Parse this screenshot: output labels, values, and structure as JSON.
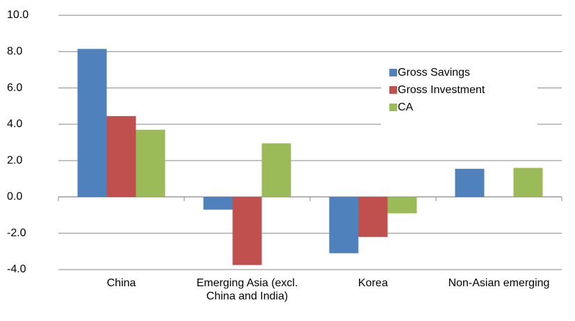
{
  "chart_data": {
    "type": "bar",
    "categories": [
      "China",
      "Emerging Asia (excl. China and India)",
      "Korea",
      "Non-Asian emerging"
    ],
    "series": [
      {
        "name": "Gross Savings",
        "color": "#4f81bd",
        "values": [
          8.15,
          -0.7,
          -3.1,
          1.55
        ]
      },
      {
        "name": "Gross Investment",
        "color": "#c0504d",
        "values": [
          4.45,
          -3.75,
          -2.2,
          null
        ]
      },
      {
        "name": "CA",
        "color": "#9bbb59",
        "values": [
          3.7,
          2.95,
          -0.9,
          1.6
        ]
      }
    ],
    "ylim": [
      -4,
      10
    ],
    "yticks": [
      {
        "value": -4,
        "label": "-4.0"
      },
      {
        "value": -2,
        "label": "-2.0"
      },
      {
        "value": 0,
        "label": "0.0"
      },
      {
        "value": 2,
        "label": "2.0"
      },
      {
        "value": 4,
        "label": "4.0"
      },
      {
        "value": 6,
        "label": "6.0"
      },
      {
        "value": 8,
        "label": "8.0"
      },
      {
        "value": 10,
        "label": "10.0"
      }
    ],
    "grid": true,
    "legend": "upper-right"
  }
}
